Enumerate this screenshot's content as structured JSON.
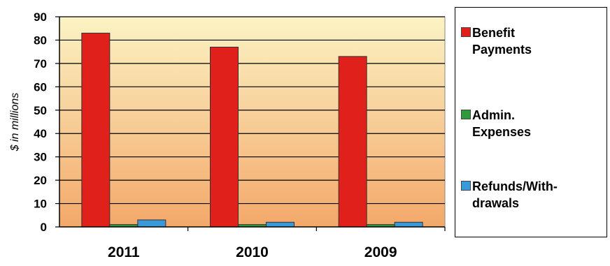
{
  "chart_data": {
    "type": "bar",
    "categories": [
      "2011",
      "2010",
      "2009"
    ],
    "series": [
      {
        "name": "Benefit\nPayments",
        "color": "#e0201a",
        "values": [
          83,
          77,
          73
        ]
      },
      {
        "name": "Admin.\nExpenses",
        "color": "#2e9a3c",
        "values": [
          1,
          1,
          1
        ]
      },
      {
        "name": "Refunds/With-\ndrawals",
        "color": "#3a9ad9",
        "values": [
          3,
          2,
          2
        ]
      }
    ],
    "title": "",
    "xlabel": "",
    "ylabel": "$ in millions",
    "ylim": [
      0,
      90
    ],
    "yticks": [
      0,
      10,
      20,
      30,
      40,
      50,
      60,
      70,
      80,
      90
    ],
    "grid": true,
    "legend_position": "right",
    "background_gradient": [
      "#fbf3c4",
      "#f3a86a"
    ]
  }
}
